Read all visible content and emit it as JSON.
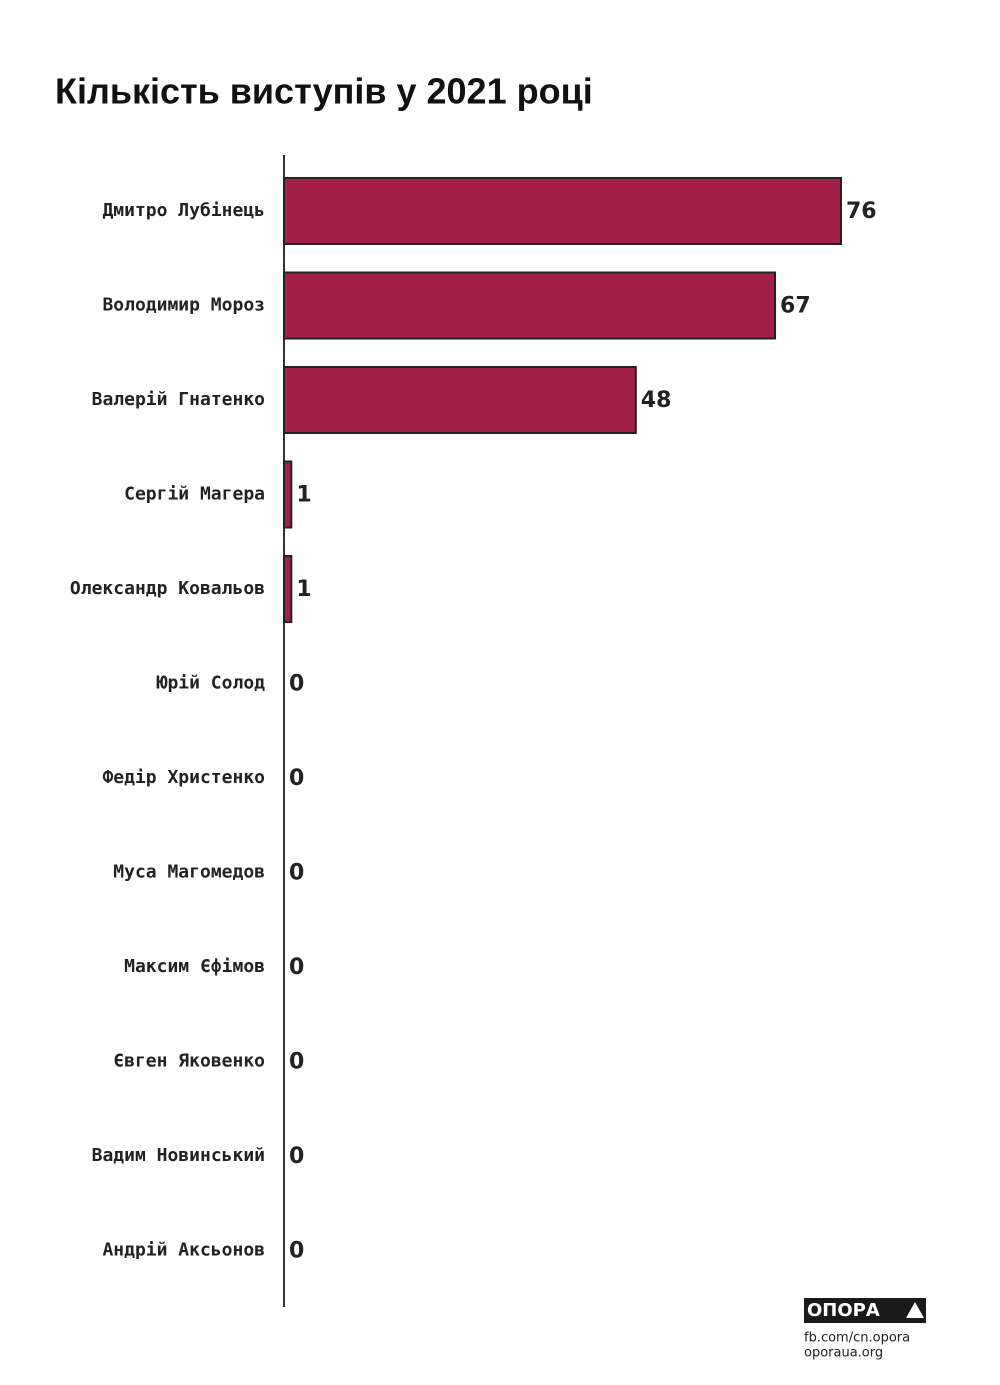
{
  "chart_data": {
    "type": "bar",
    "orientation": "horizontal",
    "title": "Кількість виступів у 2021 році",
    "categories": [
      "Дмитро Лубінець",
      "Володимир Мороз",
      "Валерій Гнатенко",
      "Сергій Магера",
      "Олександр Ковальов",
      "Юрій Солод",
      "Федір Христенко",
      "Муса Магомедов",
      "Максим Єфімов",
      "Євген Яковенко",
      "Вадим Новинський",
      "Андрій Аксьонов"
    ],
    "values": [
      76,
      67,
      48,
      1,
      1,
      0,
      0,
      0,
      0,
      0,
      0,
      0
    ],
    "color": "#a21f48",
    "xlim": [
      0,
      76
    ]
  },
  "footer": {
    "logo": "ОПОРА",
    "links": [
      "fb.com/cn.opora",
      "oporaua.org"
    ]
  }
}
